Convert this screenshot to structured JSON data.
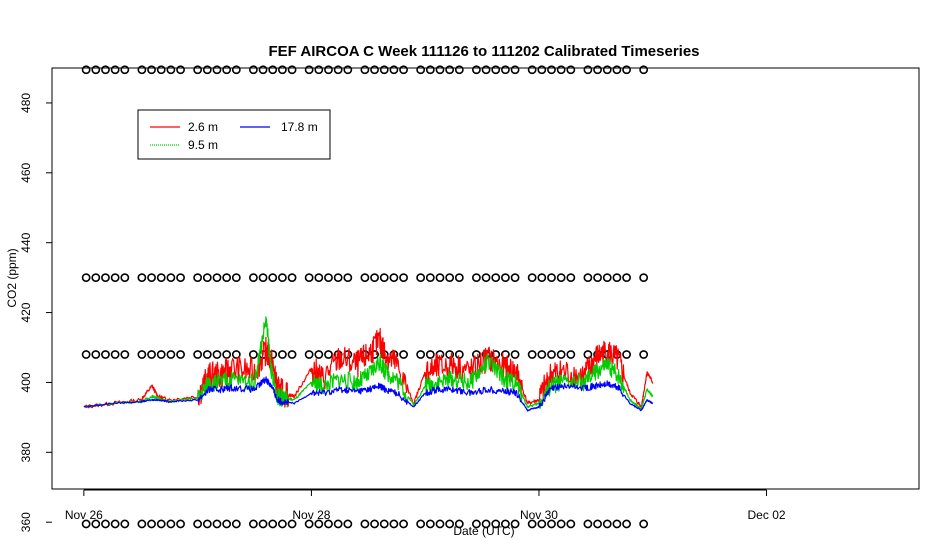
{
  "chart_data": {
    "type": "line",
    "title": "FEF AIRCOA C  Week 111126 to 111202  Calibrated Timeseries",
    "xlabel": "Date (UTC)",
    "ylabel": "CO2 (ppm)",
    "xlim": [
      -0.28,
      7.34
    ],
    "ylim": [
      369.5,
      490
    ],
    "x_ticks": [
      {
        "value": 0,
        "label": "Nov 26"
      },
      {
        "value": 2,
        "label": "Nov 28"
      },
      {
        "value": 4,
        "label": "Nov 30"
      },
      {
        "value": 6,
        "label": "Dec 02"
      }
    ],
    "y_ticks": [
      {
        "value": 360,
        "label": "360"
      },
      {
        "value": 380,
        "label": "380"
      },
      {
        "value": 400,
        "label": "400"
      },
      {
        "value": 420,
        "label": "420"
      },
      {
        "value": 440,
        "label": "440"
      },
      {
        "value": 460,
        "label": "460"
      },
      {
        "value": 480,
        "label": "480"
      }
    ],
    "legend": {
      "placement": "top-left",
      "entries": [
        {
          "name": "2.6 m",
          "color": "#ff0000"
        },
        {
          "name": "17.8 m",
          "color": "#0000ff"
        },
        {
          "name": "9.5 m",
          "color": "#00cc00"
        }
      ]
    },
    "series": [
      {
        "name": "2.6 m",
        "color": "#ff0000",
        "x": [
          0.0,
          0.25,
          0.5,
          0.6,
          0.65,
          0.75,
          1.0,
          1.1,
          1.2,
          1.3,
          1.5,
          1.6,
          1.65,
          1.7,
          1.75,
          1.85,
          2.0,
          2.1,
          2.25,
          2.4,
          2.5,
          2.6,
          2.65,
          2.75,
          2.9,
          3.0,
          3.1,
          3.25,
          3.4,
          3.55,
          3.7,
          3.8,
          3.9,
          4.0,
          4.1,
          4.2,
          4.4,
          4.5,
          4.6,
          4.7,
          4.8,
          4.9,
          4.95,
          5.0
        ],
        "y": [
          393,
          394,
          395,
          399,
          396,
          395,
          396,
          402,
          402,
          404,
          403,
          409,
          406,
          398,
          397,
          396,
          404,
          401,
          407,
          405,
          408,
          412,
          408,
          405,
          394,
          403,
          404,
          405,
          403,
          407,
          404,
          403,
          394,
          395,
          402,
          403,
          402,
          407,
          409,
          406,
          397,
          393,
          403,
          400
        ]
      },
      {
        "name": "9.5 m",
        "color": "#00cc00",
        "x": [
          0.0,
          0.25,
          0.5,
          0.6,
          0.65,
          0.75,
          1.0,
          1.1,
          1.2,
          1.3,
          1.5,
          1.6,
          1.65,
          1.7,
          1.75,
          1.85,
          2.0,
          2.1,
          2.25,
          2.4,
          2.5,
          2.6,
          2.65,
          2.75,
          2.9,
          3.0,
          3.1,
          3.25,
          3.4,
          3.55,
          3.7,
          3.8,
          3.9,
          4.0,
          4.1,
          4.2,
          4.4,
          4.5,
          4.6,
          4.7,
          4.8,
          4.9,
          4.95,
          5.0
        ],
        "y": [
          393,
          394,
          394.5,
          396,
          395.5,
          394.5,
          395.5,
          400,
          400,
          401,
          400,
          418,
          403,
          396,
          395.5,
          395,
          400,
          399,
          401,
          400,
          402,
          406,
          403,
          401,
          393.5,
          399,
          400,
          401,
          400,
          406,
          401,
          400,
          393,
          394,
          399,
          400,
          400,
          403,
          405,
          402,
          395,
          392.5,
          398,
          396
        ]
      },
      {
        "name": "17.8 m",
        "color": "#0000ff",
        "x": [
          0.0,
          0.25,
          0.5,
          0.6,
          0.65,
          0.75,
          1.0,
          1.1,
          1.2,
          1.3,
          1.5,
          1.6,
          1.65,
          1.7,
          1.75,
          1.85,
          2.0,
          2.1,
          2.25,
          2.4,
          2.5,
          2.6,
          2.65,
          2.75,
          2.9,
          3.0,
          3.1,
          3.25,
          3.4,
          3.55,
          3.7,
          3.8,
          3.9,
          4.0,
          4.1,
          4.2,
          4.4,
          4.5,
          4.6,
          4.7,
          4.8,
          4.9,
          4.95,
          5.0
        ],
        "y": [
          393,
          394,
          394.5,
          395,
          395,
          394.5,
          395,
          398,
          398,
          398.5,
          398,
          401,
          399,
          395,
          394.5,
          394,
          397,
          397,
          398,
          397.5,
          398,
          399,
          398,
          397,
          393,
          397,
          398,
          398,
          397,
          398,
          397.5,
          397,
          392,
          393,
          398,
          399,
          398.5,
          399,
          399.5,
          398.5,
          394,
          392,
          395,
          394
        ]
      }
    ],
    "calibration_markers": {
      "symbol": "open-circle",
      "levels": [
        359.5,
        408,
        430,
        489.5
      ],
      "x_start": 0.02,
      "x_end": 5.0
    }
  }
}
